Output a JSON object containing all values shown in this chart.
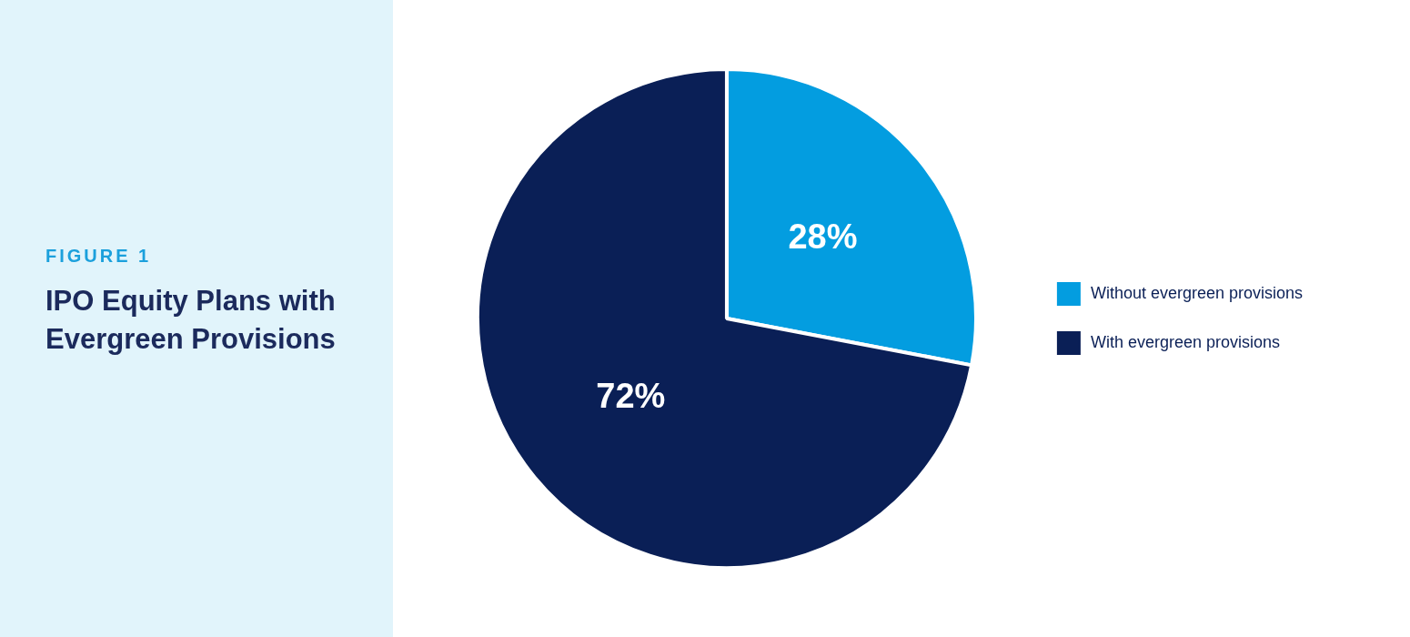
{
  "chart_data": {
    "type": "pie",
    "subtitle": "FIGURE 1",
    "title": "IPO Equity Plans with Evergreen Provisions",
    "categories": [
      "Without evergreen provisions",
      "With evergreen provisions"
    ],
    "values": [
      28,
      72
    ],
    "value_labels": [
      "28%",
      "72%"
    ],
    "colors": [
      "#039de0",
      "#0a1f56"
    ],
    "legend": "right"
  }
}
